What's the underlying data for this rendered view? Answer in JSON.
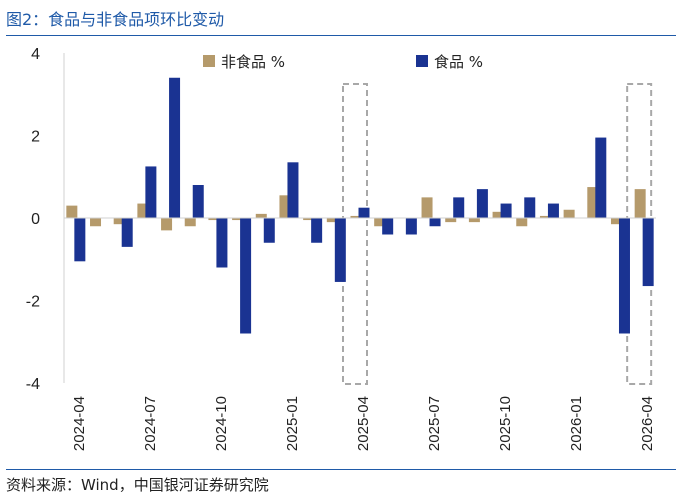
{
  "figure": {
    "title": "图2：食品与非食品项环比变动",
    "source": "资料来源：Wind，中国银河证券研究院"
  },
  "colors": {
    "non_food": "#b59a6b",
    "food": "#1a3392",
    "axis": "#d0d0d0",
    "highlight_box": "#a8a8a8",
    "title": "#1f5aa8"
  },
  "chart_data": {
    "type": "bar",
    "stacked": true,
    "ylim": [
      -4,
      4
    ],
    "yticks": [
      -4,
      -2,
      0,
      2,
      4
    ],
    "ytick_labels": [
      "-4",
      "-2",
      "0",
      "2",
      "4"
    ],
    "grid": false,
    "legend_position": "top",
    "categories": [
      "2024-04",
      "2024-05",
      "2024-06",
      "2024-07",
      "2024-08",
      "2024-09",
      "2024-10",
      "2024-11",
      "2024-12",
      "2025-01",
      "2025-02",
      "2025-03",
      "2025-04",
      "2025-05",
      "2025-06",
      "2025-07",
      "2025-08",
      "2025-09",
      "2025-10",
      "2025-11",
      "2025-12",
      "2026-01",
      "2026-02",
      "2026-03",
      "2026-04"
    ],
    "x_tick_labels": [
      "2024-04",
      "2024-07",
      "2024-10",
      "2025-01",
      "2025-04",
      "2025-07",
      "2025-10",
      "2026-01",
      "2026-04"
    ],
    "series": [
      {
        "name": "非食品 %",
        "color": "#b59a6b",
        "values": [
          0.3,
          -0.2,
          -0.15,
          0.35,
          -0.3,
          -0.2,
          -0.05,
          -0.05,
          0.1,
          0.55,
          -0.05,
          -0.1,
          0.05,
          -0.2,
          0.0,
          0.5,
          -0.1,
          -0.1,
          0.15,
          -0.2,
          0.05,
          0.2,
          0.75,
          -0.15,
          0.7
        ]
      },
      {
        "name": "食品 %",
        "color": "#1a3392",
        "values": [
          -1.05,
          0.0,
          -0.7,
          1.25,
          3.4,
          0.8,
          -1.2,
          -2.8,
          -0.6,
          1.35,
          -0.6,
          -1.55,
          0.25,
          -0.4,
          -0.4,
          -0.2,
          0.5,
          0.7,
          0.35,
          0.5,
          0.35,
          0.0,
          1.95,
          -2.8,
          -1.65
        ]
      }
    ],
    "highlight_categories": [
      "2025-04",
      "2026-04"
    ]
  }
}
